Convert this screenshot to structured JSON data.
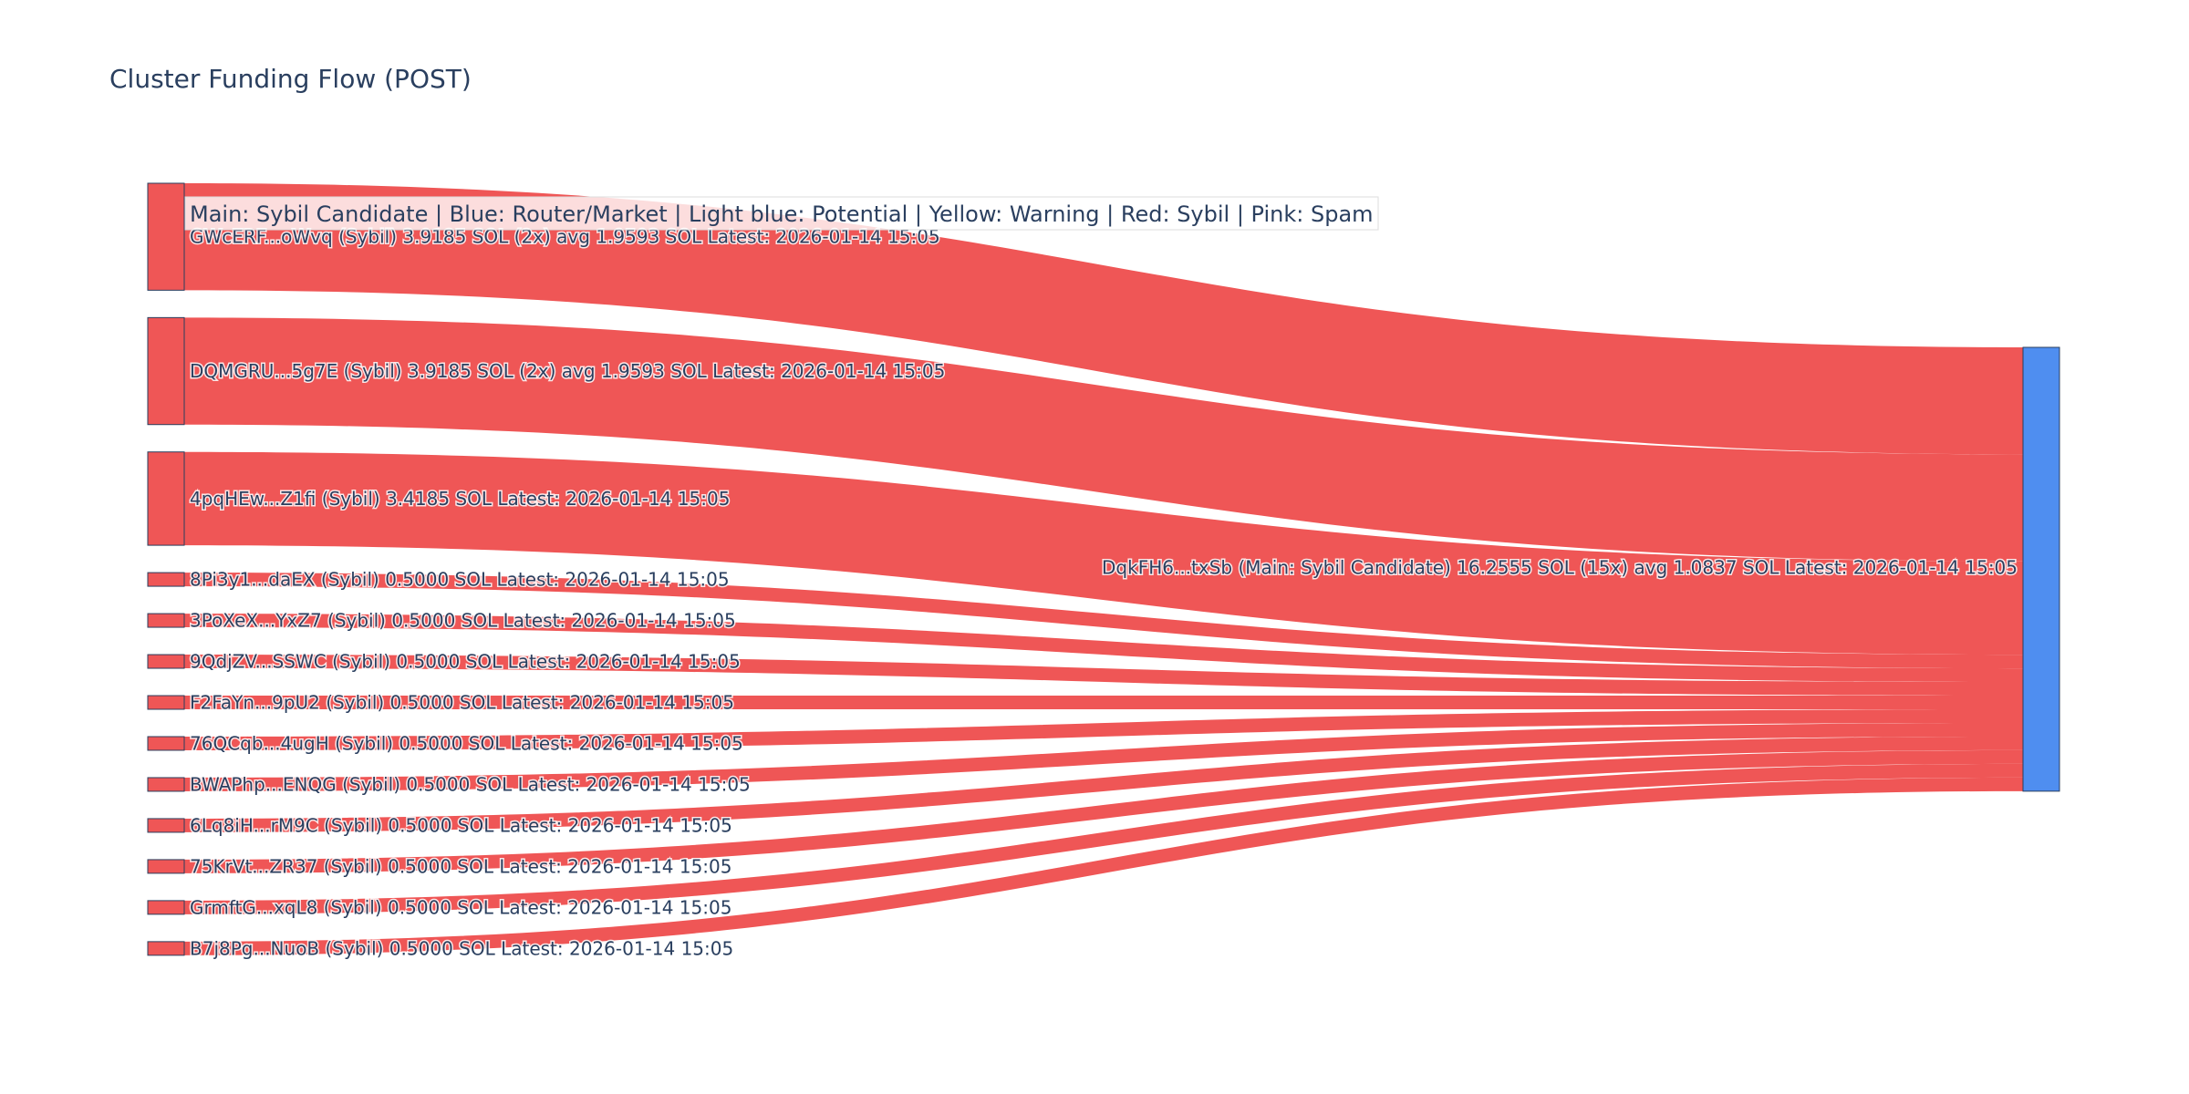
{
  "chart_data": {
    "type": "sankey",
    "title": "Cluster Funding Flow (POST)",
    "legend_note": "Main: Sybil Candidate  |  Blue: Router/Market | Light blue: Potential | Yellow: Warning | Red: Sybil | Pink: Spam",
    "colors": {
      "link": "#ef5656",
      "sybil_node": "#ef5656",
      "target_node": "#4f8ef0",
      "node_border": "#2a3f5f",
      "text": "#2a3f5f"
    },
    "sources": [
      {
        "label": "GWcERF...oWvq (Sybil) 3.9185 SOL (2x) avg 1.9593 SOL Latest: 2026-01-14 15:05",
        "value": 3.9185
      },
      {
        "label": "DQMGRU...5g7E (Sybil) 3.9185 SOL (2x) avg 1.9593 SOL Latest: 2026-01-14 15:05",
        "value": 3.9185
      },
      {
        "label": "4pqHEw...Z1fi (Sybil) 3.4185 SOL Latest: 2026-01-14 15:05",
        "value": 3.4185
      },
      {
        "label": "8Pi3y1...daEX (Sybil) 0.5000 SOL Latest: 2026-01-14 15:05",
        "value": 0.5
      },
      {
        "label": "3PoXeX...YxZ7 (Sybil) 0.5000 SOL Latest: 2026-01-14 15:05",
        "value": 0.5
      },
      {
        "label": "9QdjZV...SSWC (Sybil) 0.5000 SOL Latest: 2026-01-14 15:05",
        "value": 0.5
      },
      {
        "label": "F2FaYn...9pU2 (Sybil) 0.5000 SOL Latest: 2026-01-14 15:05",
        "value": 0.5
      },
      {
        "label": "76QCqb...4ugH (Sybil) 0.5000 SOL Latest: 2026-01-14 15:05",
        "value": 0.5
      },
      {
        "label": "BWAPhp...ENQG (Sybil) 0.5000 SOL Latest: 2026-01-14 15:05",
        "value": 0.5
      },
      {
        "label": "6Lq8iH...rM9C (Sybil) 0.5000 SOL Latest: 2026-01-14 15:05",
        "value": 0.5
      },
      {
        "label": "75KrVt...ZR37 (Sybil) 0.5000 SOL Latest: 2026-01-14 15:05",
        "value": 0.5
      },
      {
        "label": "GrmftG...xqL8 (Sybil) 0.5000 SOL Latest: 2026-01-14 15:05",
        "value": 0.5
      },
      {
        "label": "B7j8Pg...NuoB (Sybil) 0.5000 SOL Latest: 2026-01-14 15:05",
        "value": 0.5
      }
    ],
    "target": {
      "label": "DqkFH6...txSb (Main: Sybil Candidate) 16.2555 SOL (15x) avg 1.0837 SOL Latest: 2026-01-14 15:05",
      "value": 16.2555
    }
  }
}
